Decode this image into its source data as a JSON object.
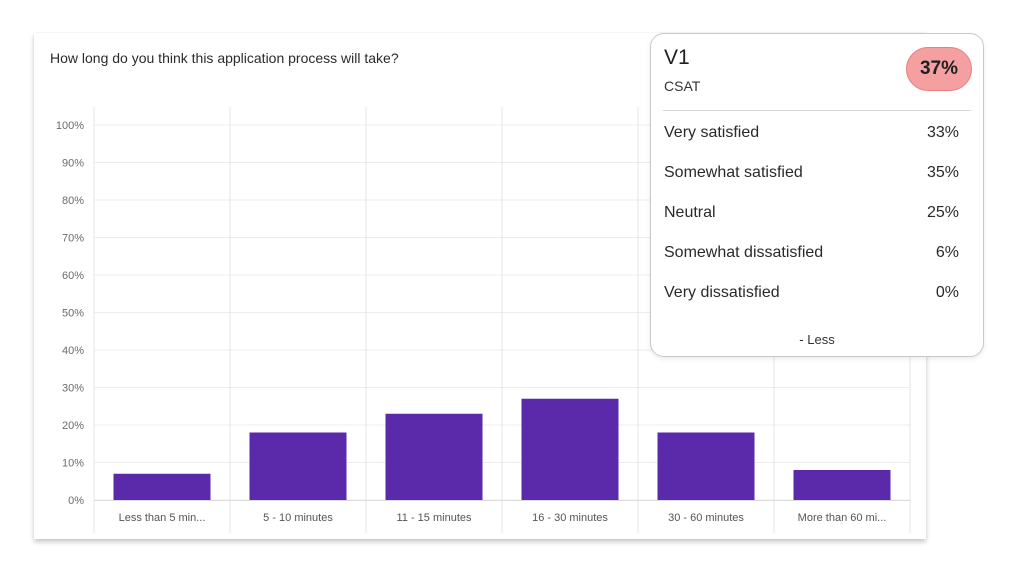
{
  "question": "How long do you think this application process will take?",
  "chart_data": {
    "type": "bar",
    "categories": [
      "Less than 5 min...",
      "5 - 10 minutes",
      "11 - 15 minutes",
      "16 - 30 minutes",
      "30 - 60 minutes",
      "More than 60 mi..."
    ],
    "values": [
      7,
      18,
      23,
      27,
      18,
      8
    ],
    "ylim": [
      0,
      100
    ],
    "yticks": [
      "0%",
      "10%",
      "20%",
      "30%",
      "40%",
      "50%",
      "60%",
      "70%",
      "80%",
      "90%",
      "100%"
    ],
    "color": "#5b2aaa",
    "grid": true
  },
  "popover": {
    "title": "V1",
    "subtitle": "CSAT",
    "score": "37%",
    "score_color": "#f4a0a0",
    "rows": [
      {
        "label": "Very satisfied",
        "value": "33%"
      },
      {
        "label": "Somewhat satisfied",
        "value": "35%"
      },
      {
        "label": "Neutral",
        "value": "25%"
      },
      {
        "label": "Somewhat dissatisfied",
        "value": "6%"
      },
      {
        "label": "Very dissatisfied",
        "value": "0%"
      }
    ],
    "less_label": "- Less"
  }
}
